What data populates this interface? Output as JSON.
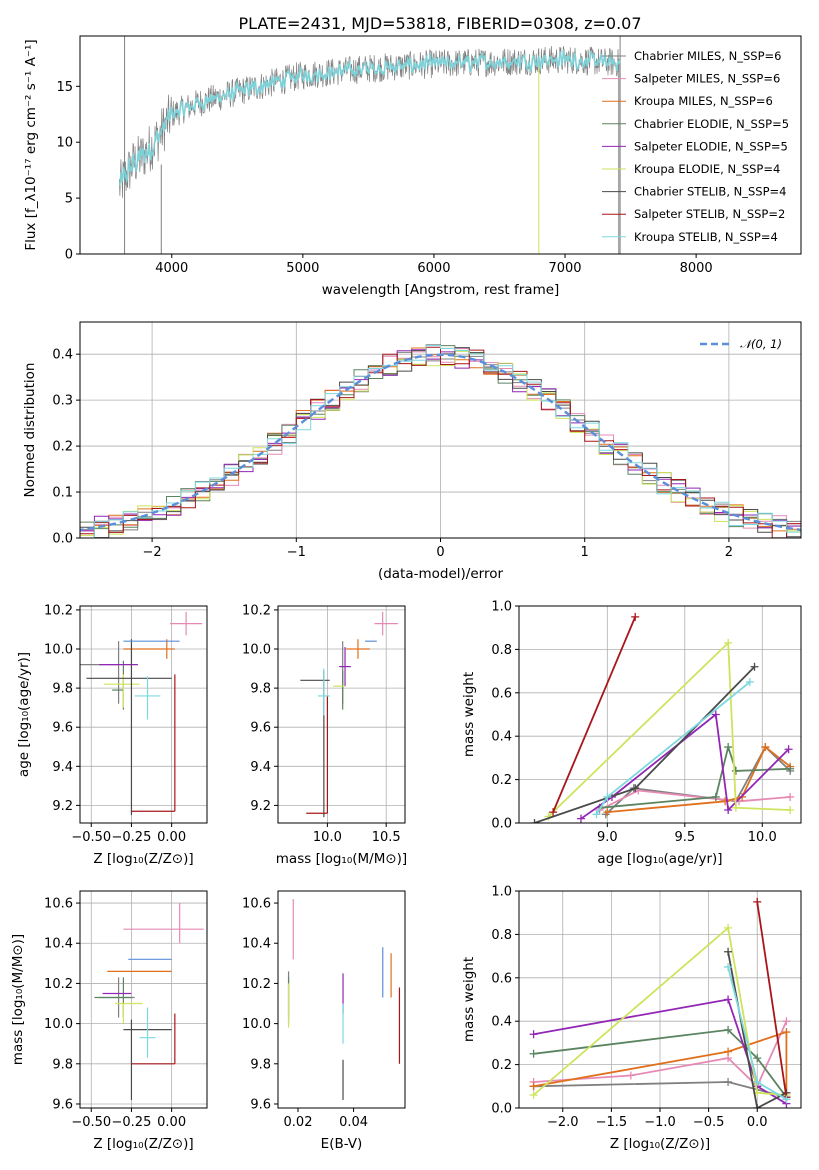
{
  "title": "PLATE=2431, MJD=53818, FIBERID=0308, z=0.07",
  "colors": [
    "#808080",
    "#e68ab5",
    "#e0701c",
    "#5b8461",
    "#9226b5",
    "#cfe35c",
    "#4a4a4a",
    "#a8161a",
    "#7dd8df"
  ],
  "mean_color": "#5b8fd9",
  "chart_data": [
    {
      "id": "spectrum",
      "type": "line",
      "xlabel": "wavelength [Angstrom, rest frame]",
      "ylabel": "Flux [f_λ10⁻¹⁷ erg cm⁻² s⁻¹ A⁻¹]",
      "xlim": [
        3300,
        8800
      ],
      "ylim": [
        0,
        19.5
      ],
      "xticks": [
        4000,
        5000,
        6000,
        7000,
        8000
      ],
      "yticks": [
        0,
        5,
        10,
        15
      ],
      "grid": false,
      "legend_position": "right",
      "series": [
        {
          "name": "Chabrier MILES, N_SSP=6"
        },
        {
          "name": "Salpeter MILES, N_SSP=6"
        },
        {
          "name": "Kroupa MILES, N_SSP=6"
        },
        {
          "name": "Chabrier ELODIE, N_SSP=5"
        },
        {
          "name": "Salpeter ELODIE, N_SSP=5"
        },
        {
          "name": "Kroupa ELODIE, N_SSP=4"
        },
        {
          "name": "Chabrier STELIB, N_SSP=4"
        },
        {
          "name": "Salpeter STELIB, N_SSP=2"
        },
        {
          "name": "Kroupa STELIB, N_SSP=4"
        }
      ],
      "continuum": [
        [
          3600,
          6
        ],
        [
          3700,
          8
        ],
        [
          3800,
          9
        ],
        [
          3900,
          10.5
        ],
        [
          4000,
          12.5
        ],
        [
          4200,
          13.5
        ],
        [
          4500,
          14.5
        ],
        [
          5000,
          16
        ],
        [
          5500,
          16.6
        ],
        [
          6000,
          17
        ],
        [
          6500,
          17.2
        ],
        [
          7000,
          17.4
        ],
        [
          7400,
          17.1
        ]
      ]
    },
    {
      "id": "residuals",
      "type": "line",
      "xlabel": "(data-model)/error",
      "ylabel": "Normed distribution",
      "xlim": [
        -2.5,
        2.5
      ],
      "ylim": [
        0,
        0.47
      ],
      "xticks": [
        -2,
        -1,
        0,
        1,
        2
      ],
      "yticks": [
        0.0,
        0.1,
        0.2,
        0.3,
        0.4
      ],
      "grid": true,
      "legend_position": "top-right",
      "series": [
        {
          "name": "𝒩(0, 1)"
        }
      ],
      "bin_width": 0.1
    },
    {
      "id": "age_vs_Z",
      "type": "scatter",
      "xlabel": "Z [log₁₀(Z/Z⊙)]",
      "ylabel": "age  [log₁₀(age/yr)]",
      "xlim": [
        -0.57,
        0.22
      ],
      "ylim": [
        9.11,
        10.22
      ],
      "xticks": [
        -0.5,
        -0.25,
        0.0
      ],
      "xticklabels": [
        "−0.50",
        "−0.25",
        "0.00"
      ],
      "yticks": [
        9.2,
        9.4,
        9.6,
        9.8,
        10.0,
        10.2
      ],
      "grid": true,
      "points": [
        {
          "x": -0.33,
          "y": 9.92,
          "xerr": [
            0.27,
            0
          ],
          "yerr": [
            0.2,
            0.12
          ]
        },
        {
          "x": 0.09,
          "y": 10.13,
          "xerr": [
            0.1,
            0.1
          ],
          "yerr": [
            0.06,
            0.06
          ]
        },
        {
          "x": -0.03,
          "y": 10.0,
          "xerr": [
            0.27,
            0.05
          ],
          "yerr": [
            0.05,
            0.05
          ]
        },
        {
          "x": -0.3,
          "y": 9.79,
          "xerr": [
            0.07,
            0
          ],
          "yerr": [
            0.1,
            0.15
          ]
        },
        {
          "x": -0.33,
          "y": 9.92,
          "xerr": [
            0.12,
            0.12
          ],
          "yerr": [
            0,
            0
          ]
        },
        {
          "x": -0.3,
          "y": 9.82,
          "xerr": [
            0.12,
            0.1
          ],
          "yerr": [
            0.12,
            0.05
          ]
        },
        {
          "x": -0.25,
          "y": 9.85,
          "xerr": [
            0.28,
            0.25
          ],
          "yerr": [
            0.7,
            0.2
          ]
        },
        {
          "x": 0.02,
          "y": 9.17,
          "xerr": [
            0.27,
            0
          ],
          "yerr": [
            0,
            0.7
          ]
        },
        {
          "x": -0.15,
          "y": 9.76,
          "xerr": [
            0.08,
            0.08
          ],
          "yerr": [
            0.12,
            0.1
          ]
        },
        {
          "x": -0.05,
          "y": 10.04,
          "xerr": [
            0.25,
            0.1
          ],
          "yerr": [
            0,
            0
          ],
          "mean": true
        }
      ]
    },
    {
      "id": "age_vs_mass",
      "type": "scatter",
      "xlabel": "mass [log₁₀(M/M⊙)]",
      "ylabel": "",
      "xlim": [
        9.58,
        10.66
      ],
      "ylim": [
        9.11,
        10.22
      ],
      "xticks": [
        10.0,
        10.5
      ],
      "xticklabels": [
        "10.0",
        "10.5"
      ],
      "yticks": [
        9.2,
        9.4,
        9.6,
        9.8,
        10.0,
        10.2
      ],
      "grid": true,
      "points": [
        {
          "x": 10.13,
          "y": 9.92,
          "xerr": [
            0,
            0
          ],
          "yerr": [
            0.2,
            0.12
          ]
        },
        {
          "x": 10.47,
          "y": 10.13,
          "xerr": [
            0.07,
            0.13
          ],
          "yerr": [
            0.06,
            0.06
          ]
        },
        {
          "x": 10.26,
          "y": 10.0,
          "xerr": [
            0.1,
            0.1
          ],
          "yerr": [
            0.05,
            0.05
          ]
        },
        {
          "x": 10.13,
          "y": 9.79,
          "xerr": [
            0,
            0
          ],
          "yerr": [
            0.1,
            0.1
          ]
        },
        {
          "x": 10.15,
          "y": 9.91,
          "xerr": [
            0.05,
            0.05
          ],
          "yerr": [
            0.1,
            0.1
          ]
        },
        {
          "x": 10.1,
          "y": 9.81,
          "xerr": [
            0.05,
            0.05
          ],
          "yerr": [
            0,
            0
          ]
        },
        {
          "x": 9.97,
          "y": 9.84,
          "xerr": [
            0.2,
            0.05
          ],
          "yerr": [
            0.7,
            0.05
          ]
        },
        {
          "x": 10.0,
          "y": 9.16,
          "xerr": [
            0.18,
            0
          ],
          "yerr": [
            0,
            0.6
          ]
        },
        {
          "x": 9.97,
          "y": 9.76,
          "xerr": [
            0.05,
            0.05
          ],
          "yerr": [
            0.1,
            0.14
          ]
        },
        {
          "x": 10.32,
          "y": 10.04,
          "xerr": [
            0,
            0.1
          ],
          "yerr": [
            0,
            0
          ],
          "mean": true
        }
      ]
    },
    {
      "id": "weight_vs_age",
      "type": "line",
      "xlabel": "age  [log₁₀(age/yr)]",
      "ylabel": "mass weight",
      "xlim": [
        8.43,
        10.25
      ],
      "ylim": [
        0,
        1.0
      ],
      "xticks": [
        9.0,
        9.5,
        10.0
      ],
      "yticks": [
        0.0,
        0.2,
        0.4,
        0.6,
        0.8,
        1.0
      ],
      "grid": true,
      "series": [
        {
          "points": [
            [
              8.99,
              0.04
            ],
            [
              9.17,
              0.16
            ],
            [
              9.83,
              0.1
            ],
            [
              10.02,
              0.35
            ],
            [
              10.18,
              0.24
            ]
          ]
        },
        {
          "points": [
            [
              8.95,
              0.06
            ],
            [
              9.2,
              0.15
            ],
            [
              9.85,
              0.1
            ],
            [
              10.18,
              0.12
            ]
          ]
        },
        {
          "points": [
            [
              9.0,
              0.05
            ],
            [
              9.76,
              0.1
            ],
            [
              9.87,
              0.12
            ],
            [
              10.02,
              0.35
            ],
            [
              10.18,
              0.26
            ]
          ]
        },
        {
          "points": [
            [
              8.95,
              0.07
            ],
            [
              9.7,
              0.12
            ],
            [
              9.78,
              0.35
            ],
            [
              9.83,
              0.24
            ],
            [
              10.18,
              0.25
            ]
          ]
        },
        {
          "points": [
            [
              8.83,
              0.02
            ],
            [
              9.03,
              0.12
            ],
            [
              9.7,
              0.5
            ],
            [
              9.78,
              0.06
            ],
            [
              10.17,
              0.34
            ]
          ]
        },
        {
          "points": [
            [
              8.62,
              0.03
            ],
            [
              9.78,
              0.83
            ],
            [
              9.83,
              0.07
            ],
            [
              10.18,
              0.06
            ]
          ]
        },
        {
          "points": [
            [
              8.53,
              0.0
            ],
            [
              9.18,
              0.16
            ],
            [
              9.95,
              0.72
            ]
          ]
        },
        {
          "points": [
            [
              8.65,
              0.05
            ],
            [
              9.18,
              0.95
            ]
          ]
        },
        {
          "points": [
            [
              8.93,
              0.04
            ],
            [
              9.0,
              0.12
            ],
            [
              9.92,
              0.65
            ]
          ]
        }
      ]
    },
    {
      "id": "mass_vs_Z",
      "type": "scatter",
      "xlabel": "Z [log₁₀(Z/Z⊙)]",
      "ylabel": "mass [log₁₀(M/M⊙)]",
      "xlim": [
        -0.57,
        0.22
      ],
      "ylim": [
        9.58,
        10.66
      ],
      "xticks": [
        -0.5,
        -0.25,
        0.0
      ],
      "xticklabels": [
        "−0.50",
        "−0.25",
        "0.00"
      ],
      "yticks": [
        9.6,
        9.8,
        10.0,
        10.2,
        10.4,
        10.6
      ],
      "grid": true,
      "points": [
        {
          "x": -0.33,
          "y": 10.13,
          "xerr": [
            0.12,
            0.1
          ],
          "yerr": [
            0.1,
            0.1
          ]
        },
        {
          "x": 0.05,
          "y": 10.47,
          "xerr": [
            0.35,
            0.15
          ],
          "yerr": [
            0.07,
            0.13
          ]
        },
        {
          "x": -0.1,
          "y": 10.26,
          "xerr": [
            0.3,
            0.1
          ],
          "yerr": [
            0,
            0
          ]
        },
        {
          "x": -0.3,
          "y": 10.13,
          "xerr": [
            0.18,
            0.05
          ],
          "yerr": [
            0.1,
            0.1
          ]
        },
        {
          "x": -0.33,
          "y": 10.15,
          "xerr": [
            0.1,
            0.08
          ],
          "yerr": [
            0,
            0
          ]
        },
        {
          "x": -0.3,
          "y": 10.1,
          "xerr": [
            0.05,
            0.12
          ],
          "yerr": [
            0.1,
            0
          ]
        },
        {
          "x": -0.25,
          "y": 9.97,
          "xerr": [
            0.05,
            0.25
          ],
          "yerr": [
            0.35,
            0.05
          ]
        },
        {
          "x": 0.02,
          "y": 9.8,
          "xerr": [
            0.27,
            0
          ],
          "yerr": [
            0,
            0.25
          ]
        },
        {
          "x": -0.15,
          "y": 9.93,
          "xerr": [
            0.05,
            0.05
          ],
          "yerr": [
            0.1,
            0.15
          ]
        },
        {
          "x": -0.1,
          "y": 10.32,
          "xerr": [
            0.17,
            0.1
          ],
          "yerr": [
            0,
            0
          ],
          "mean": true
        }
      ]
    },
    {
      "id": "mass_vs_ebv",
      "type": "scatter",
      "xlabel": "E(B-V)",
      "ylabel": "",
      "xlim": [
        0.0128,
        0.0585
      ],
      "ylim": [
        9.58,
        10.66
      ],
      "xticks": [
        0.02,
        0.04
      ],
      "xticklabels": [
        "0.02",
        "0.04"
      ],
      "yticks": [
        9.6,
        9.8,
        10.0,
        10.2,
        10.4,
        10.6
      ],
      "grid": false,
      "points": [
        {
          "x": 0.0166,
          "y": 10.13,
          "xerr": [
            0,
            0
          ],
          "yerr": [
            0.13,
            0.13
          ]
        },
        {
          "x": 0.0183,
          "y": 10.47,
          "xerr": [
            0,
            0
          ],
          "yerr": [
            0.15,
            0.15
          ]
        },
        {
          "x": 0.0535,
          "y": 10.23,
          "xerr": [
            0,
            0
          ],
          "yerr": [
            0.1,
            0.12
          ]
        },
        {
          "x": 0.0166,
          "y": 10.13,
          "xerr": [
            0,
            0
          ],
          "yerr": [
            0.1,
            0.1
          ]
        },
        {
          "x": 0.0362,
          "y": 10.15,
          "xerr": [
            0,
            0
          ],
          "yerr": [
            0.1,
            0.1
          ]
        },
        {
          "x": 0.0166,
          "y": 10.1,
          "xerr": [
            0,
            0
          ],
          "yerr": [
            0.12,
            0.1
          ]
        },
        {
          "x": 0.0362,
          "y": 9.72,
          "xerr": [
            0,
            0
          ],
          "yerr": [
            0.1,
            0.1
          ]
        },
        {
          "x": 0.0565,
          "y": 9.98,
          "xerr": [
            0,
            0
          ],
          "yerr": [
            0.18,
            0.2
          ]
        },
        {
          "x": 0.0362,
          "y": 10.0,
          "xerr": [
            0,
            0
          ],
          "yerr": [
            0.1,
            0.1
          ]
        },
        {
          "x": 0.0505,
          "y": 10.25,
          "xerr": [
            0,
            0
          ],
          "yerr": [
            0.12,
            0.13
          ],
          "mean": true
        }
      ]
    },
    {
      "id": "weight_vs_Z",
      "type": "line",
      "xlabel": "Z [log₁₀(Z/Z⊙)]",
      "ylabel": "mass weight",
      "xlim": [
        -2.45,
        0.45
      ],
      "ylim": [
        0,
        1.0
      ],
      "xticks": [
        -2.0,
        -1.5,
        -1.0,
        -0.5,
        0.0
      ],
      "xticklabels": [
        "−2.0",
        "−1.5",
        "−1.0",
        "−0.5",
        "0.0"
      ],
      "yticks": [
        0.0,
        0.2,
        0.4,
        0.6,
        0.8,
        1.0
      ],
      "grid": true,
      "series": [
        {
          "points": [
            [
              -2.3,
              0.1
            ],
            [
              -0.3,
              0.12
            ],
            [
              0.3,
              0.05
            ]
          ]
        },
        {
          "points": [
            [
              -2.3,
              0.12
            ],
            [
              -1.3,
              0.15
            ],
            [
              -0.3,
              0.23
            ],
            [
              0.0,
              0.1
            ],
            [
              0.3,
              0.4
            ]
          ]
        },
        {
          "points": [
            [
              -2.3,
              0.1
            ],
            [
              -0.3,
              0.26
            ],
            [
              0.3,
              0.35
            ],
            [
              0.3,
              0.05
            ]
          ]
        },
        {
          "points": [
            [
              -2.3,
              0.25
            ],
            [
              -0.3,
              0.36
            ],
            [
              0.0,
              0.23
            ],
            [
              0.3,
              0.05
            ]
          ]
        },
        {
          "points": [
            [
              -2.3,
              0.34
            ],
            [
              -0.3,
              0.5
            ],
            [
              0.0,
              0.1
            ],
            [
              0.3,
              0.02
            ]
          ]
        },
        {
          "points": [
            [
              -2.3,
              0.06
            ],
            [
              -0.3,
              0.83
            ],
            [
              0.0,
              0.07
            ],
            [
              0.3,
              0.06
            ]
          ]
        },
        {
          "points": [
            [
              -0.3,
              0.72
            ],
            [
              0.0,
              0.0
            ],
            [
              0.3,
              0.07
            ]
          ]
        },
        {
          "points": [
            [
              0.0,
              0.95
            ],
            [
              0.3,
              0.05
            ]
          ]
        },
        {
          "points": [
            [
              -0.3,
              0.65
            ],
            [
              0.0,
              0.12
            ],
            [
              0.3,
              0.04
            ]
          ]
        }
      ]
    }
  ]
}
